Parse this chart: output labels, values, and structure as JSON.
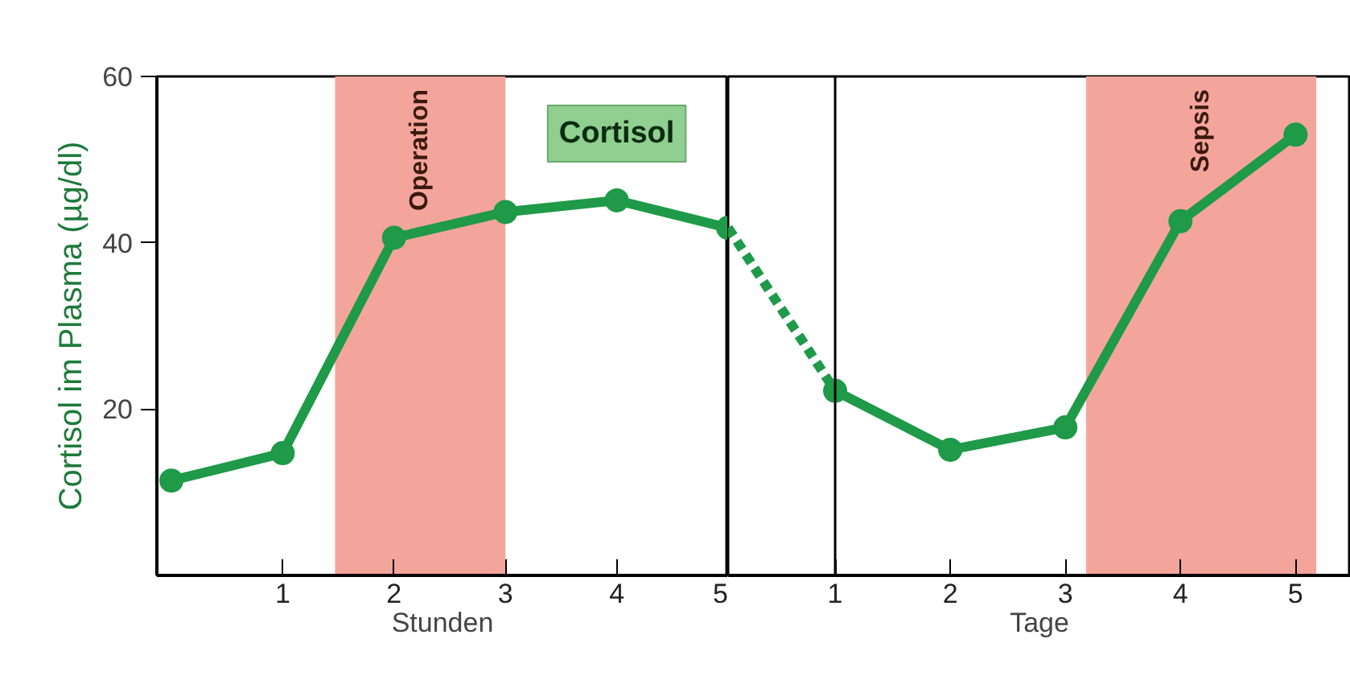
{
  "chart_data": [
    {
      "type": "line",
      "ylabel": "Cortisol im Plasma (µg/dl)",
      "xlabel": "Stunden",
      "x": [
        0,
        1,
        2,
        3,
        4,
        5
      ],
      "series": [
        {
          "color": "#1e9a48",
          "values": [
            11.4,
            14.7,
            40.6,
            43.7,
            45.1,
            41.8
          ]
        }
      ],
      "xlim": [
        -0.13,
        5
      ],
      "ylim": [
        0,
        60
      ],
      "xticks": [
        1,
        2,
        3,
        4,
        5
      ],
      "yticks": [
        20,
        40,
        60
      ],
      "grid": false,
      "marker": "circle",
      "line_style": "solid",
      "bands": [
        {
          "axis": "x",
          "from": 1.47,
          "to": 3.0,
          "label": "Operation",
          "color": "#f4a59b"
        }
      ],
      "annotations": [
        {
          "text": "Cortisol",
          "x": 4,
          "y": 45.1
        }
      ]
    },
    {
      "type": "line",
      "xlabel": "Tage",
      "x": [
        1,
        2,
        3,
        4,
        5
      ],
      "series": [
        {
          "color": "#1e9a48",
          "values": [
            22.2,
            15.1,
            17.8,
            42.6,
            53.0
          ]
        },
        {
          "color": "#1e9a48",
          "x": [
            0.07,
            1
          ],
          "values": [
            41.8,
            22.2
          ],
          "line_style": "dashed",
          "marker": "none"
        }
      ],
      "xlim": [
        0.07,
        5.48
      ],
      "ylim": [
        0,
        60
      ],
      "xticks": [
        1,
        2,
        3,
        4,
        5
      ],
      "tick_labels": "x",
      "grid": false,
      "marker": "circle",
      "line_style": "solid",
      "ref_lines": [
        {
          "axis": "x",
          "value": 1,
          "label": null,
          "color": "#000000"
        }
      ],
      "bands": [
        {
          "axis": "x",
          "from": 3.18,
          "to": 5.18,
          "label": "Sepsis",
          "color": "#f4a59b"
        }
      ]
    }
  ]
}
